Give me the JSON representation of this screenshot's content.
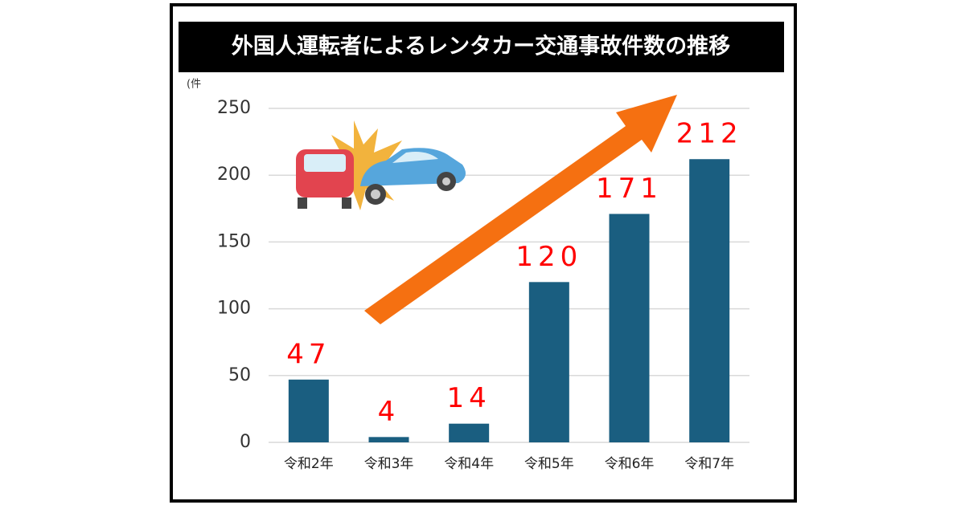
{
  "chart_data": {
    "type": "bar",
    "title": "外国人運転者によるレンタカー交通事故件数の推移",
    "unit_label": "(件",
    "categories": [
      "令和2年",
      "令和3年",
      "令和4年",
      "令和5年",
      "令和6年",
      "令和7年"
    ],
    "values": [
      47,
      4,
      14,
      120,
      171,
      212
    ],
    "color": "#1a5e80",
    "value_label_color": "#ff0000",
    "ylim": [
      0,
      250
    ],
    "yticks": [
      0,
      50,
      100,
      150,
      200,
      250
    ],
    "grid": true
  }
}
